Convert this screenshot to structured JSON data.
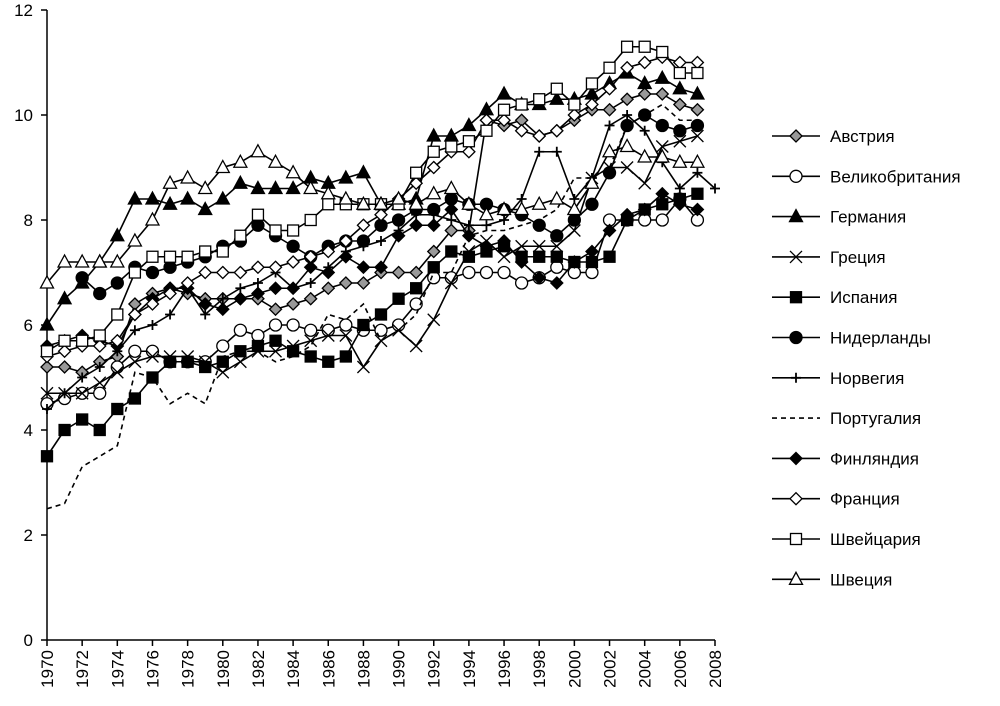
{
  "chart_data": {
    "type": "line",
    "x": [
      1970,
      1971,
      1972,
      1973,
      1974,
      1975,
      1976,
      1977,
      1978,
      1979,
      1980,
      1981,
      1982,
      1983,
      1984,
      1985,
      1986,
      1987,
      1988,
      1989,
      1990,
      1991,
      1992,
      1993,
      1994,
      1995,
      1996,
      1997,
      1998,
      1999,
      2000,
      2001,
      2002,
      2003,
      2004,
      2005,
      2006,
      2007,
      2008
    ],
    "xlim": [
      1970,
      2008
    ],
    "xticks": [
      1970,
      1972,
      1974,
      1976,
      1978,
      1980,
      1982,
      1984,
      1986,
      1988,
      1990,
      1992,
      1994,
      1996,
      1998,
      2000,
      2002,
      2004,
      2006,
      2008
    ],
    "ylim": [
      0,
      12
    ],
    "yticks": [
      0,
      2,
      4,
      6,
      8,
      10,
      12
    ],
    "legend": "right",
    "series": [
      {
        "name": "Австрия",
        "color": "#000000",
        "marker": "diamond",
        "marker_fill": "#999999",
        "dash": false,
        "values": [
          5.2,
          5.2,
          5.1,
          5.3,
          5.4,
          6.4,
          6.6,
          6.7,
          6.6,
          6.5,
          6.5,
          6.5,
          6.5,
          6.3,
          6.4,
          6.5,
          6.7,
          6.8,
          6.8,
          7.0,
          7.0,
          7.0,
          7.4,
          7.8,
          7.8,
          9.9,
          9.8,
          9.9,
          9.6,
          9.7,
          9.9,
          10.1,
          10.1,
          10.3,
          10.4,
          10.4,
          10.2,
          10.1,
          null
        ]
      },
      {
        "name": "Великобритания",
        "color": "#000000",
        "marker": "circle",
        "marker_fill": "#ffffff",
        "dash": false,
        "values": [
          4.5,
          4.6,
          4.7,
          4.7,
          5.2,
          5.5,
          5.5,
          5.3,
          5.3,
          5.3,
          5.6,
          5.9,
          5.8,
          6.0,
          6.0,
          5.9,
          5.9,
          6.0,
          5.9,
          5.9,
          6.0,
          6.4,
          6.9,
          6.9,
          7.0,
          7.0,
          7.0,
          6.8,
          6.9,
          7.1,
          7.0,
          7.0,
          8.0,
          8.0,
          8.0,
          8.0,
          8.4,
          8.0,
          null
        ]
      },
      {
        "name": "Германия",
        "color": "#000000",
        "marker": "triangle",
        "marker_fill": "#000000",
        "dash": false,
        "values": [
          6.0,
          6.5,
          6.8,
          7.2,
          7.7,
          8.4,
          8.4,
          8.3,
          8.4,
          8.2,
          8.4,
          8.7,
          8.6,
          8.6,
          8.6,
          8.8,
          8.7,
          8.8,
          8.9,
          8.3,
          8.3,
          8.4,
          9.6,
          9.6,
          9.8,
          10.1,
          10.4,
          10.2,
          10.2,
          10.3,
          10.3,
          10.4,
          10.6,
          10.8,
          10.6,
          10.7,
          10.5,
          10.4,
          null
        ]
      },
      {
        "name": "Греция",
        "color": "#000000",
        "marker": "x",
        "marker_fill": "none",
        "dash": false,
        "values": [
          4.7,
          4.7,
          4.7,
          4.9,
          5.1,
          5.3,
          5.4,
          5.4,
          5.4,
          5.3,
          5.1,
          5.3,
          5.5,
          5.5,
          5.6,
          5.7,
          5.8,
          5.8,
          5.2,
          5.7,
          5.9,
          5.6,
          6.1,
          6.8,
          7.4,
          7.6,
          7.3,
          7.5,
          7.5,
          7.5,
          7.8,
          8.8,
          9.0,
          9.0,
          8.7,
          9.4,
          9.5,
          9.6,
          null
        ]
      },
      {
        "name": "Испания",
        "color": "#000000",
        "marker": "square",
        "marker_fill": "#000000",
        "dash": false,
        "values": [
          3.5,
          4.0,
          4.2,
          4.0,
          4.4,
          4.6,
          5.0,
          5.3,
          5.3,
          5.2,
          5.3,
          5.5,
          5.6,
          5.7,
          5.5,
          5.4,
          5.3,
          5.4,
          6.0,
          6.2,
          6.5,
          6.7,
          7.1,
          7.4,
          7.3,
          7.4,
          7.5,
          7.3,
          7.3,
          7.3,
          7.2,
          7.2,
          7.3,
          8.0,
          8.2,
          8.3,
          8.4,
          8.5,
          null
        ]
      },
      {
        "name": "Нидерланды",
        "color": "#000000",
        "marker": "circle",
        "marker_fill": "#000000",
        "dash": false,
        "values": [
          null,
          null,
          6.9,
          6.6,
          6.8,
          7.1,
          7.0,
          7.1,
          7.2,
          7.3,
          7.5,
          7.6,
          7.9,
          7.7,
          7.5,
          7.3,
          7.5,
          7.6,
          7.6,
          7.9,
          8.0,
          8.2,
          8.2,
          8.4,
          8.3,
          8.3,
          8.2,
          8.1,
          7.9,
          7.7,
          8.0,
          8.3,
          8.9,
          9.8,
          10.0,
          9.8,
          9.7,
          9.8,
          null
        ]
      },
      {
        "name": "Норвегия",
        "color": "#000000",
        "marker": "plus",
        "marker_fill": "none",
        "dash": false,
        "values": [
          4.4,
          4.7,
          5.0,
          5.2,
          5.5,
          5.9,
          6.0,
          6.2,
          6.7,
          6.2,
          6.5,
          6.7,
          6.8,
          7.0,
          6.7,
          6.8,
          7.1,
          7.4,
          7.5,
          7.6,
          7.8,
          8.1,
          8.1,
          8.0,
          7.9,
          7.9,
          8.0,
          8.4,
          9.3,
          9.3,
          8.4,
          8.8,
          9.8,
          10.0,
          9.7,
          9.1,
          8.6,
          8.9,
          8.6
        ]
      },
      {
        "name": "Португалия",
        "color": "#000000",
        "marker": "none",
        "marker_fill": "none",
        "dash": true,
        "values": [
          2.5,
          2.6,
          3.3,
          3.5,
          3.7,
          5.1,
          5.0,
          4.5,
          4.7,
          4.5,
          5.4,
          5.5,
          5.5,
          5.3,
          5.4,
          5.6,
          6.2,
          6.1,
          6.4,
          5.7,
          5.9,
          6.2,
          7.0,
          7.0,
          7.7,
          7.8,
          7.8,
          7.9,
          8.0,
          8.2,
          8.8,
          8.8,
          9.0,
          9.8,
          10.0,
          10.2,
          9.9,
          9.9,
          null
        ]
      },
      {
        "name": "Финляндия",
        "color": "#000000",
        "marker": "diamond",
        "marker_fill": "#000000",
        "dash": false,
        "values": [
          5.6,
          5.7,
          5.8,
          5.7,
          5.6,
          6.2,
          6.5,
          6.7,
          6.7,
          6.4,
          6.3,
          6.5,
          6.6,
          6.7,
          6.7,
          7.1,
          7.0,
          7.3,
          7.1,
          7.1,
          7.7,
          7.9,
          7.9,
          8.2,
          7.7,
          7.5,
          7.6,
          7.2,
          6.9,
          6.8,
          7.2,
          7.4,
          7.8,
          8.1,
          8.2,
          8.5,
          8.3,
          8.2,
          null
        ]
      },
      {
        "name": "Франция",
        "color": "#000000",
        "marker": "diamond",
        "marker_fill": "#ffffff",
        "dash": false,
        "values": [
          5.4,
          5.5,
          5.6,
          5.6,
          5.7,
          6.2,
          6.4,
          6.6,
          6.8,
          7.0,
          7.0,
          7.0,
          7.1,
          7.1,
          7.2,
          7.3,
          7.4,
          7.6,
          7.9,
          8.1,
          8.4,
          8.7,
          9.0,
          9.3,
          9.3,
          9.9,
          9.9,
          9.7,
          9.6,
          9.7,
          10.0,
          10.2,
          10.5,
          10.9,
          11.0,
          11.1,
          11.0,
          11.0,
          null
        ]
      },
      {
        "name": "Швейцария",
        "color": "#000000",
        "marker": "square",
        "marker_fill": "#ffffff",
        "dash": false,
        "values": [
          5.5,
          5.7,
          5.7,
          5.8,
          6.2,
          7.0,
          7.3,
          7.3,
          7.3,
          7.4,
          7.4,
          7.7,
          8.1,
          7.8,
          7.8,
          8.0,
          8.3,
          8.3,
          8.3,
          8.3,
          8.3,
          8.9,
          9.3,
          9.4,
          9.5,
          9.7,
          10.1,
          10.2,
          10.3,
          10.5,
          10.2,
          10.6,
          10.9,
          11.3,
          11.3,
          11.2,
          10.8,
          10.8,
          null
        ]
      },
      {
        "name": "Швеция",
        "color": "#000000",
        "marker": "triangle",
        "marker_fill": "#ffffff",
        "dash": false,
        "values": [
          6.8,
          7.2,
          7.2,
          7.2,
          7.2,
          7.6,
          8.0,
          8.7,
          8.8,
          8.6,
          9.0,
          9.1,
          9.3,
          9.1,
          8.9,
          8.6,
          8.5,
          8.4,
          8.3,
          8.3,
          8.4,
          8.3,
          8.5,
          8.6,
          8.3,
          8.1,
          8.2,
          8.2,
          8.3,
          8.4,
          8.2,
          8.7,
          9.3,
          9.4,
          9.2,
          9.2,
          9.1,
          9.1,
          null
        ]
      }
    ]
  }
}
